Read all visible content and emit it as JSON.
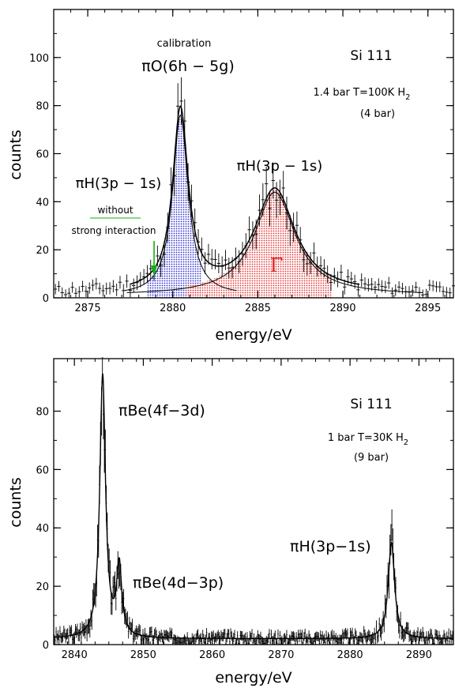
{
  "chart_data": [
    {
      "type": "scatter",
      "panel": "top",
      "xlabel": "energy/eV",
      "ylabel": "counts",
      "xlim": [
        2873,
        2896.5
      ],
      "ylim": [
        0,
        120
      ],
      "x_ticks": [
        2875,
        2880,
        2885,
        2890,
        2895
      ],
      "y_ticks": [
        0,
        20,
        40,
        60,
        80,
        100
      ],
      "colors": {
        "calibration": "#1c1ccc",
        "signal": "#e02020",
        "no_strong": "#10b010",
        "data": "#000000"
      },
      "annotations": {
        "calibration_label": "calibration",
        "calibration_line": "πO(6h − 5g)",
        "signal_line": "πH(3p − 1s)",
        "nostrong_line": "πH(3p − 1s)",
        "nostrong_sub1": "without",
        "nostrong_sub2": "strong interaction",
        "width_symbol": "Γ",
        "crystal": "Si 111",
        "conditions": "1.4 bar T=100K  H",
        "conditions_sub": "2",
        "equivalent": "(4 bar)"
      },
      "peaks": [
        {
          "name": "πO(6h − 5g)",
          "center": 2880.45,
          "amplitude": 75,
          "width": 0.55,
          "color": "#1c1ccc"
        },
        {
          "name": "πH(3p − 1s)",
          "center": 2886.0,
          "amplitude": 43,
          "width": 1.45,
          "color": "#e02020"
        }
      ],
      "background": 2,
      "arrow_x": 2878.9
    },
    {
      "type": "scatter",
      "panel": "bottom",
      "xlabel": "energy/eV",
      "ylabel": "counts",
      "xlim": [
        2837,
        2895
      ],
      "ylim": [
        0,
        98
      ],
      "x_ticks": [
        2840,
        2850,
        2860,
        2870,
        2880,
        2890
      ],
      "y_ticks": [
        0,
        20,
        40,
        60,
        80
      ],
      "annotations": {
        "peak1": "πBe(4f−3d)",
        "peak2": "πBe(4d−3p)",
        "peak3": "πH(3p−1s)",
        "crystal": "Si 111",
        "conditions": "1 bar T=30K  H",
        "conditions_sub": "2",
        "equivalent": "(9 bar)"
      },
      "peaks": [
        {
          "name": "πBe(4f−3d)",
          "center": 2844.1,
          "amplitude": 90,
          "width": 0.5
        },
        {
          "name": "πBe(4d−3p)",
          "center": 2846.5,
          "amplitude": 24,
          "width": 0.45
        },
        {
          "name": "πH(3p−1s)",
          "center": 2886.0,
          "amplitude": 33,
          "width": 0.55
        }
      ],
      "background": 2
    }
  ]
}
